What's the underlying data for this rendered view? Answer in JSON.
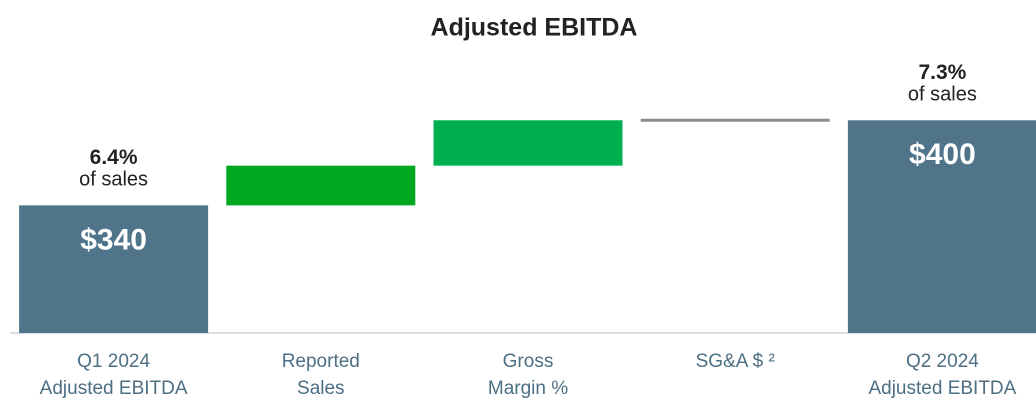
{
  "chart_data": {
    "type": "waterfall",
    "title": "Adjusted EBITDA",
    "categories": [
      "Q1 2024\nAdjusted EBITDA",
      "Reported\nSales",
      "Gross\nMargin %",
      "SG&A $ ²",
      "Q2 2024\nAdjusted EBITDA"
    ],
    "values": [
      340,
      28,
      32,
      0,
      400
    ],
    "measures": [
      "total",
      "relative",
      "relative",
      "relative",
      "total"
    ],
    "value_labels": [
      "$340",
      null,
      null,
      null,
      "$400"
    ],
    "colors": [
      "#50758b",
      "#00a81f",
      "#00b050",
      "#8c8c8c",
      "#50758b"
    ],
    "annotations": [
      {
        "label": "6.4%",
        "text": "of sales"
      },
      null,
      null,
      null,
      {
        "label": "7.3%",
        "text": "of sales"
      }
    ],
    "ylim": [
      250,
      470
    ]
  }
}
